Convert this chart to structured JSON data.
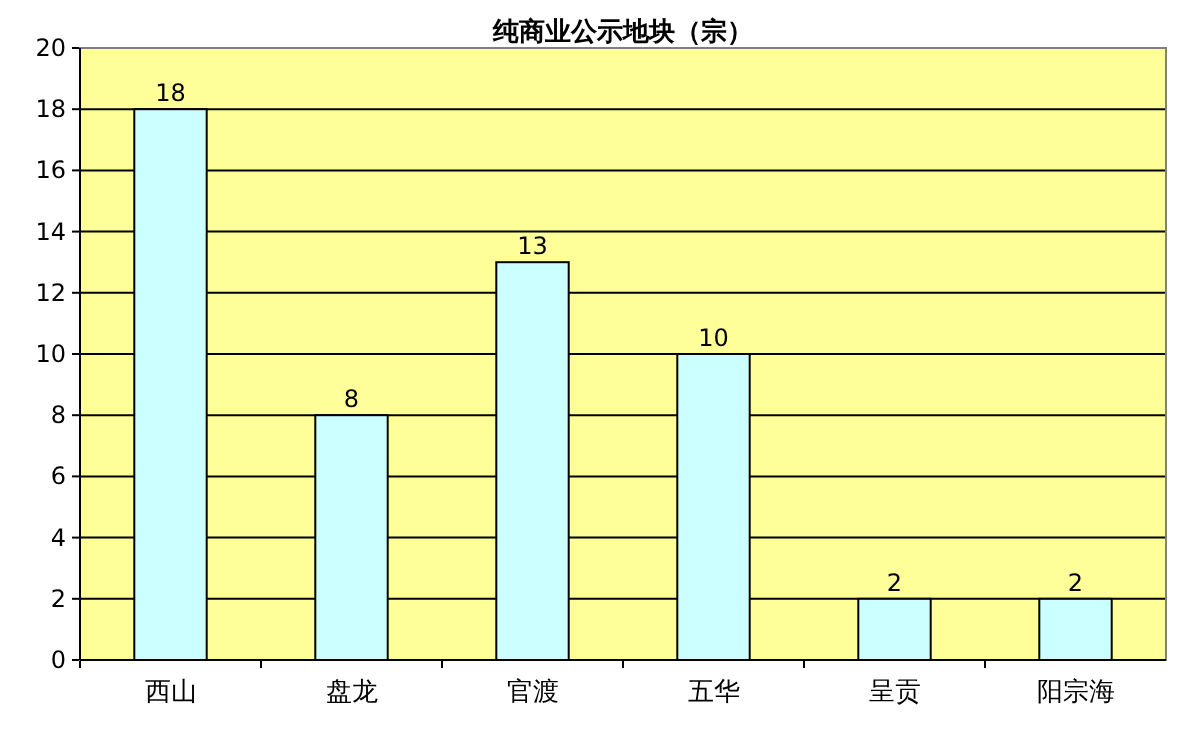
{
  "chart_data": {
    "type": "bar",
    "title": "纯商业公示地块（宗）",
    "categories": [
      "西山",
      "盘龙",
      "官渡",
      "五华",
      "呈贡",
      "阳宗海"
    ],
    "values": [
      18,
      8,
      13,
      10,
      2,
      2
    ],
    "color": "#ccffff",
    "ylim": [
      0,
      20
    ],
    "yticks": [
      0,
      2,
      4,
      6,
      8,
      10,
      12,
      14,
      16,
      18,
      20
    ],
    "grid": "y",
    "data_labels": true
  }
}
